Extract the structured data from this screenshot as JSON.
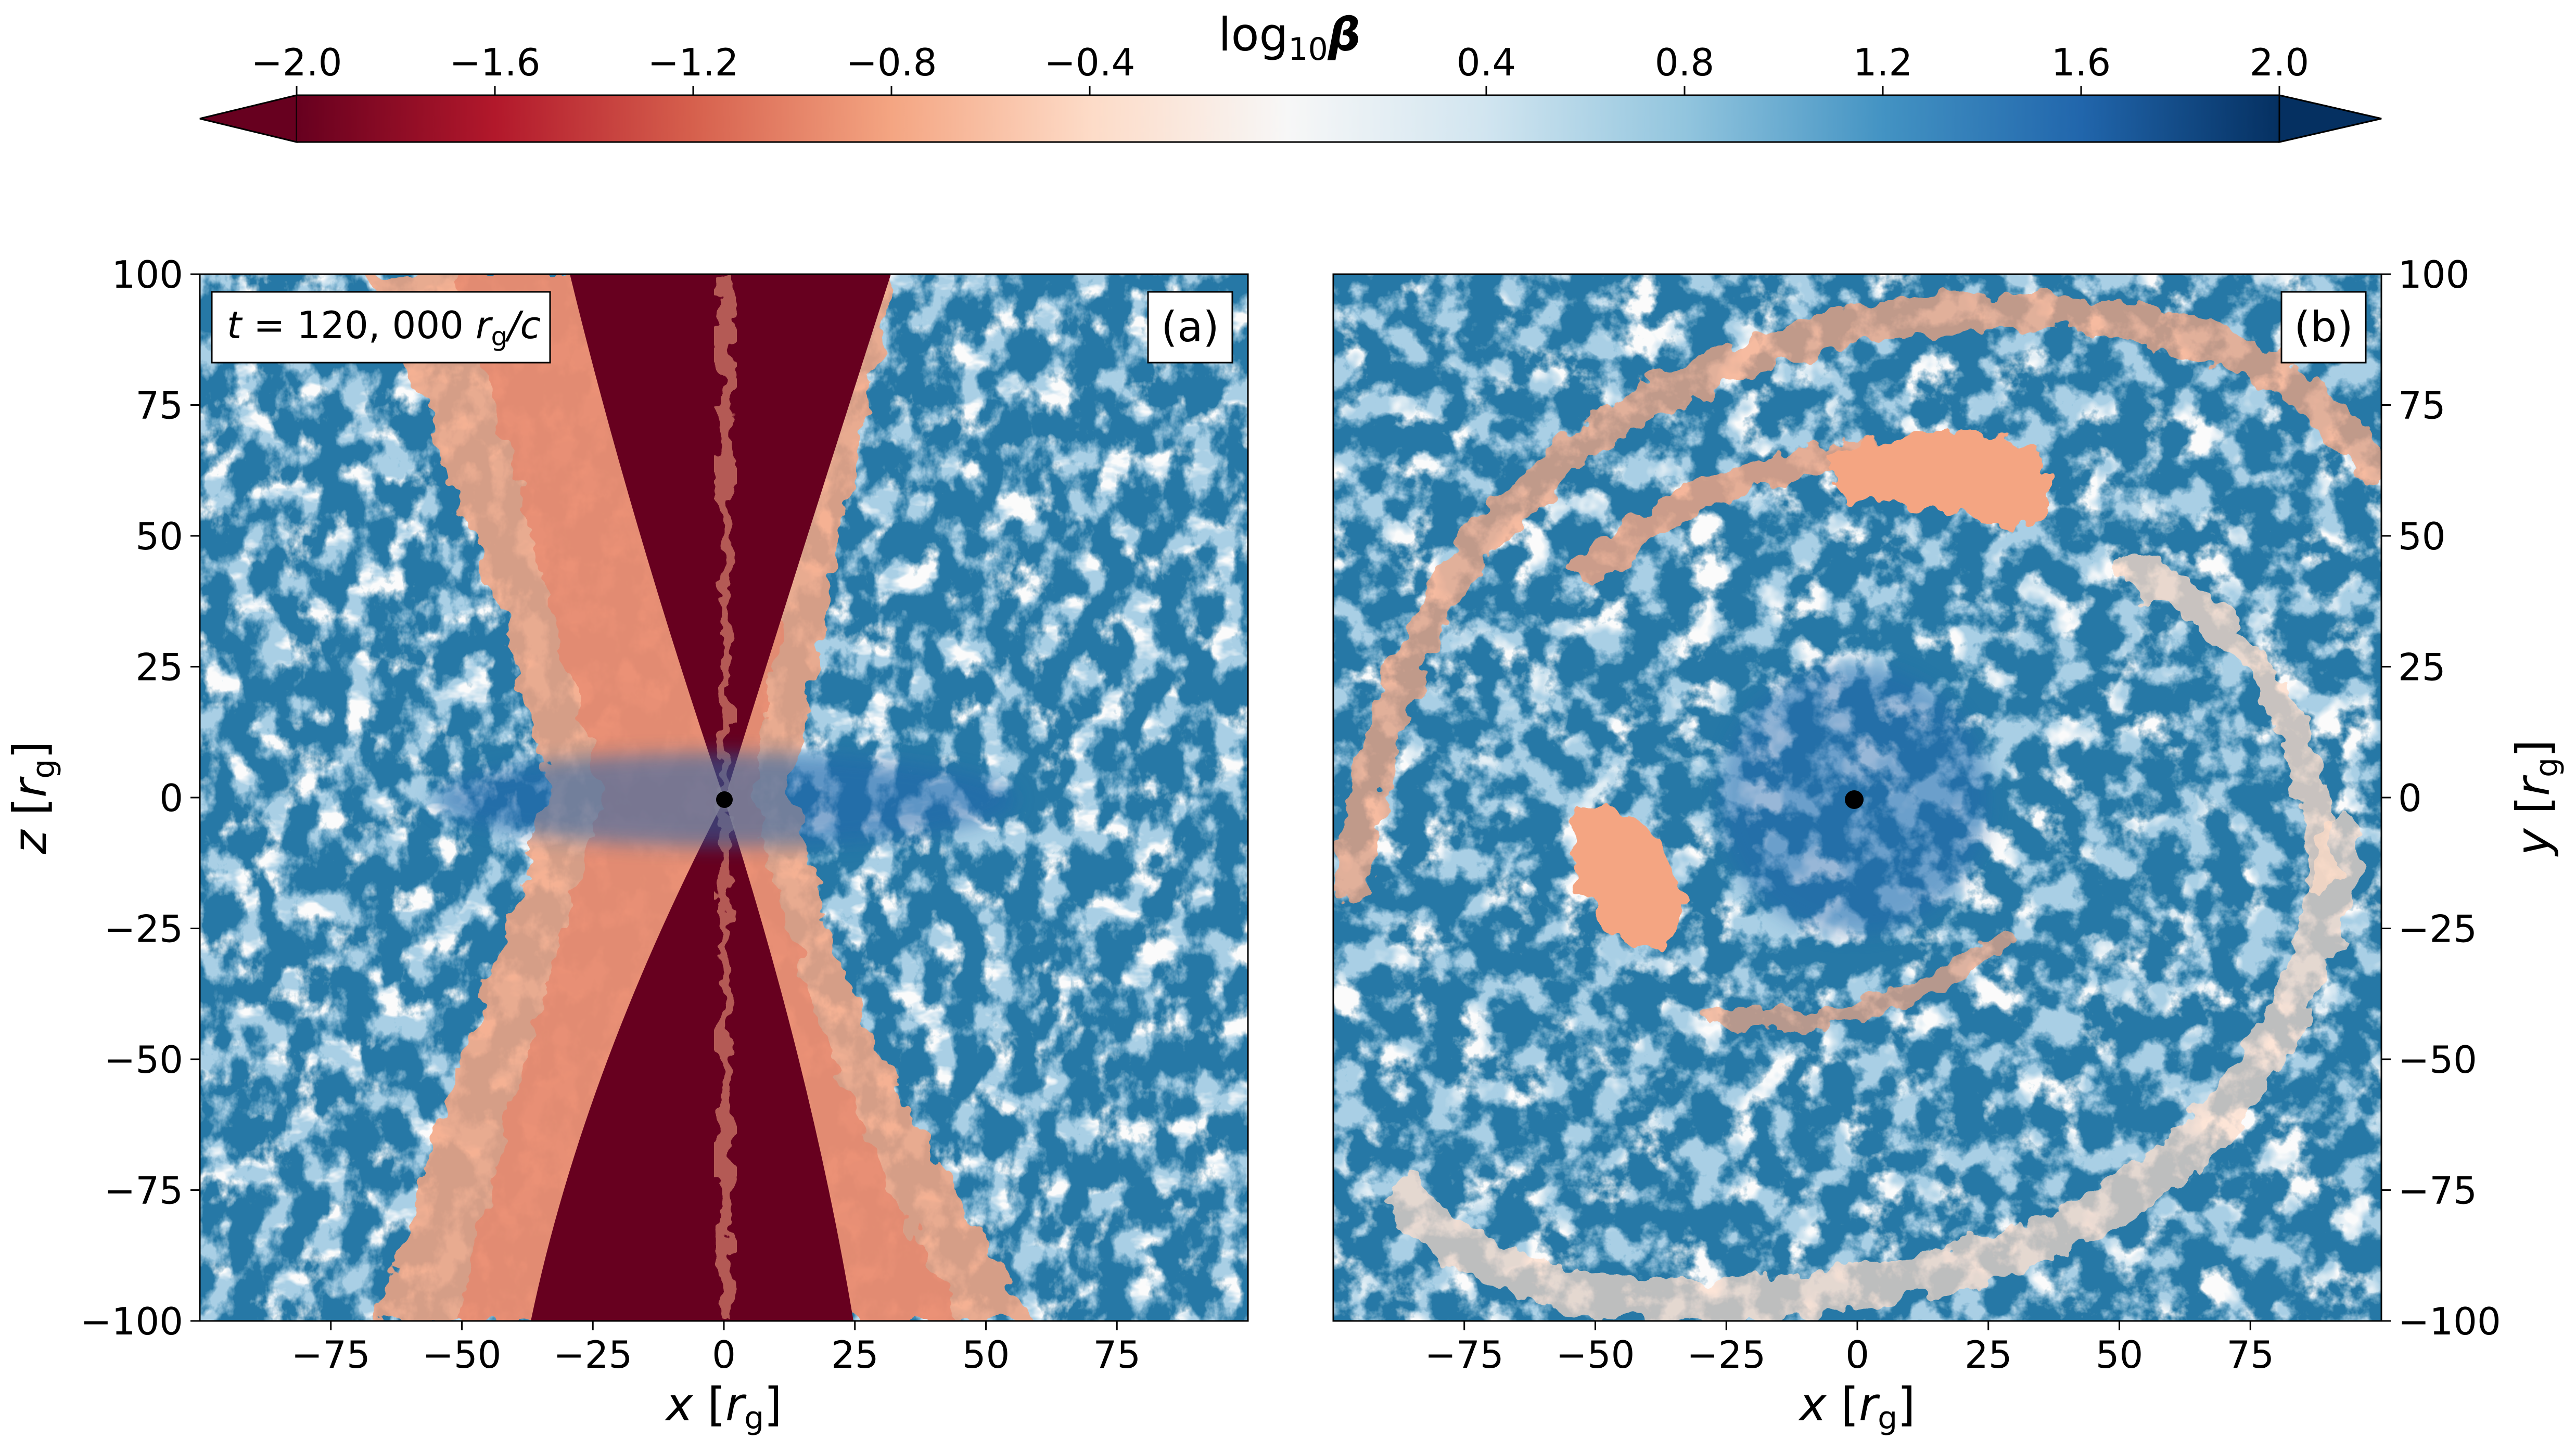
{
  "colorbar": {
    "label_main": "log",
    "label_sub": "10",
    "label_sym": "β",
    "vmin": -2.0,
    "vmax": 2.0,
    "ticks": [
      "−2.0",
      "−1.6",
      "−1.2",
      "−0.8",
      "−0.4",
      "0.4",
      "0.8",
      "1.2",
      "1.6",
      "2.0"
    ],
    "tick_values": [
      -2.0,
      -1.6,
      -1.2,
      -0.8,
      -0.4,
      0.4,
      0.8,
      1.2,
      1.6,
      2.0
    ],
    "colormap": "RdBu",
    "extend": "both",
    "stops": [
      "#67001f",
      "#b2182b",
      "#d6604d",
      "#f4a582",
      "#fddbc7",
      "#f7f7f7",
      "#d1e5f0",
      "#92c5de",
      "#4393c3",
      "#2166ac",
      "#053061"
    ]
  },
  "chart_data": [
    {
      "type": "heatmap",
      "panel_label": "(a)",
      "annotation": {
        "t": "t",
        "value": " = 120, 000 ",
        "r": "r",
        "sub": "g",
        "tail": "/c"
      },
      "xlabel": {
        "var": "x",
        "open": " [",
        "r": "r",
        "sub": "g",
        "close": "]"
      },
      "ylabel": {
        "var": "z",
        "open": " [",
        "r": "r",
        "sub": "g",
        "close": "]"
      },
      "xlim": [
        -100,
        100
      ],
      "ylim": [
        -100,
        100
      ],
      "xticks": [
        "−75",
        "−50",
        "−25",
        "0",
        "25",
        "50",
        "75"
      ],
      "xtick_values": [
        -75,
        -50,
        -25,
        0,
        25,
        50,
        75
      ],
      "yticks": [
        "100",
        "75",
        "50",
        "25",
        "0",
        "−25",
        "−50",
        "−75",
        "−100"
      ],
      "ytick_values": [
        100,
        75,
        50,
        25,
        0,
        -25,
        -50,
        -75,
        -100
      ],
      "quantity": "log10 β",
      "description_of_field": "poloidal slice: low-beta (red) jet funnel along z axis, high-beta (blue) turbulent disk near equator",
      "black_hole_position": [
        0,
        0
      ]
    },
    {
      "type": "heatmap",
      "panel_label": "(b)",
      "xlabel": {
        "var": "x",
        "open": " [",
        "r": "r",
        "sub": "g",
        "close": "]"
      },
      "ylabel": {
        "var": "y",
        "open": " [",
        "r": "r",
        "sub": "g",
        "close": "]"
      },
      "xlim": [
        -100,
        100
      ],
      "ylim": [
        -100,
        100
      ],
      "xticks": [
        "−75",
        "−50",
        "−25",
        "0",
        "25",
        "50",
        "75"
      ],
      "xtick_values": [
        -75,
        -50,
        -25,
        0,
        25,
        50,
        75
      ],
      "yticks": [
        "100",
        "75",
        "50",
        "25",
        "0",
        "−25",
        "−50",
        "−75",
        "−100"
      ],
      "ytick_values": [
        100,
        75,
        50,
        25,
        0,
        -25,
        -50,
        -75,
        -100
      ],
      "quantity": "log10 β",
      "description_of_field": "equatorial slice: spiral turbulent structure, mostly high-beta with red magnetically dominated patches",
      "black_hole_position": [
        0,
        0
      ]
    }
  ]
}
